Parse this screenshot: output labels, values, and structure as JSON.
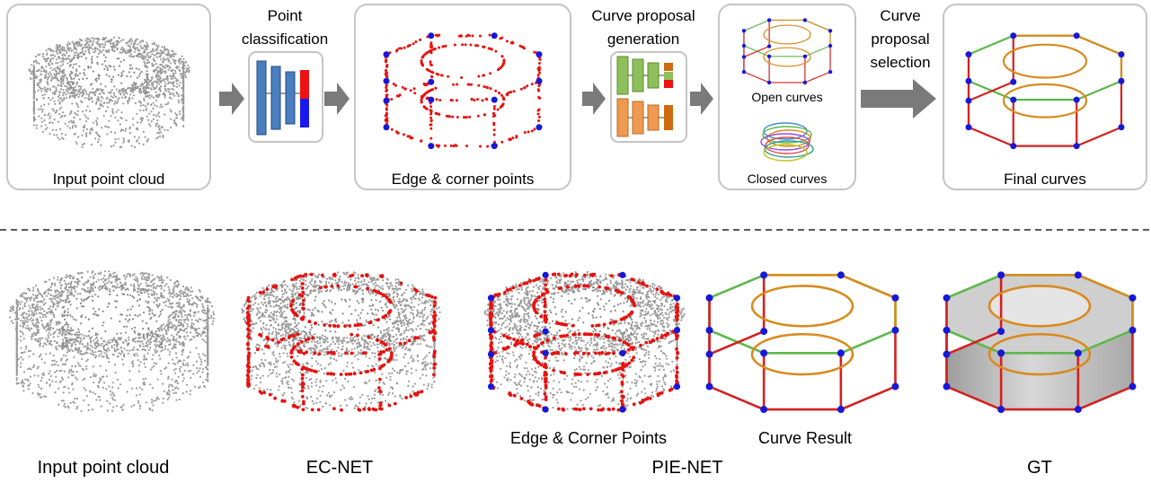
{
  "pipeline": {
    "input_caption": "Input point cloud",
    "classification_label": [
      "Point",
      "classification"
    ],
    "edge_caption": "Edge & corner points",
    "proposal_label": [
      "Curve proposal",
      "generation"
    ],
    "open_caption": "Open curves",
    "closed_caption": "Closed curves",
    "selection_label": [
      "Curve",
      "proposal",
      "selection"
    ],
    "final_caption": "Final curves"
  },
  "comparison": {
    "input_caption": "Input point cloud",
    "ecnet_caption": "EC-NET",
    "pienet_caption": "PIE-NET",
    "edge_corner_caption": "Edge & Corner Points",
    "curve_result_caption": "Curve Result",
    "gt_caption": "GT"
  },
  "colors": {
    "point_gray": "#9a9a9a",
    "edge_red": "#e8120f",
    "corner_blue": "#1818d8",
    "line_curve_red": "#d42020",
    "bspline_green": "#5cb84a",
    "circle_orange": "#d98a1e",
    "net_blue": "#4a7ebf",
    "net_green": "#8dc05a",
    "net_orange": "#ee9a50",
    "net_dark_orange": "#d06a10",
    "arrow_gray": "#7a7a7a",
    "panel_border": "#c4c4c4"
  }
}
